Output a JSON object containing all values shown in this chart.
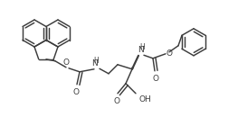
{
  "bg_color": "#ffffff",
  "line_color": "#3c3c3c",
  "lw": 1.05,
  "figsize": [
    2.63,
    1.4
  ],
  "dpi": 100,
  "xlim": [
    0,
    263
  ],
  "ylim": [
    0,
    140
  ]
}
